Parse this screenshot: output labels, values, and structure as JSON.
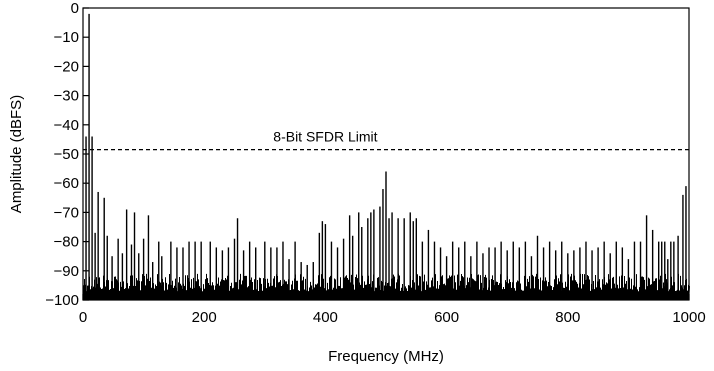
{
  "chart_data": {
    "type": "bar",
    "xlabel": "Frequency (MHz)",
    "ylabel": "Amplitude (dBFS)",
    "xlim": [
      0,
      1000
    ],
    "ylim": [
      -100,
      0
    ],
    "x_ticks": [
      "0",
      "200",
      "400",
      "600",
      "800",
      "1000"
    ],
    "y_ticks": [
      "0",
      "−10",
      "−20",
      "−30",
      "−40",
      "−50",
      "−60",
      "−70",
      "−80",
      "−90",
      "−100"
    ],
    "grid": false,
    "reference_line": {
      "label": "8-Bit SFDR Limit",
      "value": -48.5,
      "style": "dashed"
    },
    "noise_floor": {
      "from": -100,
      "to": -90
    },
    "spurs": [
      {
        "x": 5,
        "y": -44
      },
      {
        "x": 10,
        "y": -2
      },
      {
        "x": 15,
        "y": -44
      },
      {
        "x": 20,
        "y": -77
      },
      {
        "x": 25,
        "y": -63
      },
      {
        "x": 35,
        "y": -65
      },
      {
        "x": 40,
        "y": -78
      },
      {
        "x": 48,
        "y": -85
      },
      {
        "x": 58,
        "y": -79
      },
      {
        "x": 65,
        "y": -84
      },
      {
        "x": 72,
        "y": -69
      },
      {
        "x": 80,
        "y": -81
      },
      {
        "x": 85,
        "y": -70
      },
      {
        "x": 92,
        "y": -84
      },
      {
        "x": 100,
        "y": -79
      },
      {
        "x": 108,
        "y": -71
      },
      {
        "x": 115,
        "y": -87
      },
      {
        "x": 125,
        "y": -80
      },
      {
        "x": 130,
        "y": -85
      },
      {
        "x": 145,
        "y": -80
      },
      {
        "x": 155,
        "y": -82
      },
      {
        "x": 165,
        "y": -82
      },
      {
        "x": 175,
        "y": -80
      },
      {
        "x": 185,
        "y": -80
      },
      {
        "x": 195,
        "y": -80
      },
      {
        "x": 210,
        "y": -80
      },
      {
        "x": 220,
        "y": -82
      },
      {
        "x": 230,
        "y": -83
      },
      {
        "x": 240,
        "y": -82
      },
      {
        "x": 250,
        "y": -79
      },
      {
        "x": 255,
        "y": -72
      },
      {
        "x": 265,
        "y": -83
      },
      {
        "x": 275,
        "y": -80
      },
      {
        "x": 285,
        "y": -82
      },
      {
        "x": 300,
        "y": -80
      },
      {
        "x": 310,
        "y": -82
      },
      {
        "x": 320,
        "y": -82
      },
      {
        "x": 330,
        "y": -80
      },
      {
        "x": 340,
        "y": -86
      },
      {
        "x": 350,
        "y": -80
      },
      {
        "x": 360,
        "y": -87
      },
      {
        "x": 370,
        "y": -88
      },
      {
        "x": 380,
        "y": -87
      },
      {
        "x": 390,
        "y": -77
      },
      {
        "x": 395,
        "y": -73
      },
      {
        "x": 400,
        "y": -74
      },
      {
        "x": 410,
        "y": -80
      },
      {
        "x": 420,
        "y": -82
      },
      {
        "x": 430,
        "y": -79
      },
      {
        "x": 440,
        "y": -71
      },
      {
        "x": 445,
        "y": -78
      },
      {
        "x": 455,
        "y": -70
      },
      {
        "x": 460,
        "y": -75
      },
      {
        "x": 470,
        "y": -72
      },
      {
        "x": 475,
        "y": -70
      },
      {
        "x": 480,
        "y": -69
      },
      {
        "x": 490,
        "y": -68
      },
      {
        "x": 495,
        "y": -62
      },
      {
        "x": 500,
        "y": -56
      },
      {
        "x": 505,
        "y": -72
      },
      {
        "x": 510,
        "y": -70
      },
      {
        "x": 520,
        "y": -72
      },
      {
        "x": 530,
        "y": -72
      },
      {
        "x": 540,
        "y": -70
      },
      {
        "x": 545,
        "y": -73
      },
      {
        "x": 550,
        "y": -72
      },
      {
        "x": 560,
        "y": -80
      },
      {
        "x": 570,
        "y": -76
      },
      {
        "x": 580,
        "y": -80
      },
      {
        "x": 590,
        "y": -82
      },
      {
        "x": 600,
        "y": -85
      },
      {
        "x": 610,
        "y": -80
      },
      {
        "x": 620,
        "y": -82
      },
      {
        "x": 630,
        "y": -80
      },
      {
        "x": 640,
        "y": -85
      },
      {
        "x": 650,
        "y": -80
      },
      {
        "x": 660,
        "y": -84
      },
      {
        "x": 670,
        "y": -82
      },
      {
        "x": 680,
        "y": -82
      },
      {
        "x": 690,
        "y": -80
      },
      {
        "x": 700,
        "y": -83
      },
      {
        "x": 710,
        "y": -80
      },
      {
        "x": 720,
        "y": -82
      },
      {
        "x": 730,
        "y": -80
      },
      {
        "x": 740,
        "y": -85
      },
      {
        "x": 750,
        "y": -78
      },
      {
        "x": 760,
        "y": -82
      },
      {
        "x": 770,
        "y": -80
      },
      {
        "x": 780,
        "y": -83
      },
      {
        "x": 790,
        "y": -80
      },
      {
        "x": 800,
        "y": -84
      },
      {
        "x": 810,
        "y": -83
      },
      {
        "x": 820,
        "y": -82
      },
      {
        "x": 830,
        "y": -80
      },
      {
        "x": 840,
        "y": -83
      },
      {
        "x": 850,
        "y": -82
      },
      {
        "x": 860,
        "y": -80
      },
      {
        "x": 870,
        "y": -84
      },
      {
        "x": 880,
        "y": -80
      },
      {
        "x": 890,
        "y": -82
      },
      {
        "x": 900,
        "y": -86
      },
      {
        "x": 910,
        "y": -80
      },
      {
        "x": 920,
        "y": -80
      },
      {
        "x": 930,
        "y": -71
      },
      {
        "x": 940,
        "y": -76
      },
      {
        "x": 950,
        "y": -80
      },
      {
        "x": 955,
        "y": -80
      },
      {
        "x": 960,
        "y": -80
      },
      {
        "x": 965,
        "y": -86
      },
      {
        "x": 970,
        "y": -80
      },
      {
        "x": 975,
        "y": -80
      },
      {
        "x": 982,
        "y": -78
      },
      {
        "x": 990,
        "y": -64
      },
      {
        "x": 995,
        "y": -61
      }
    ]
  }
}
